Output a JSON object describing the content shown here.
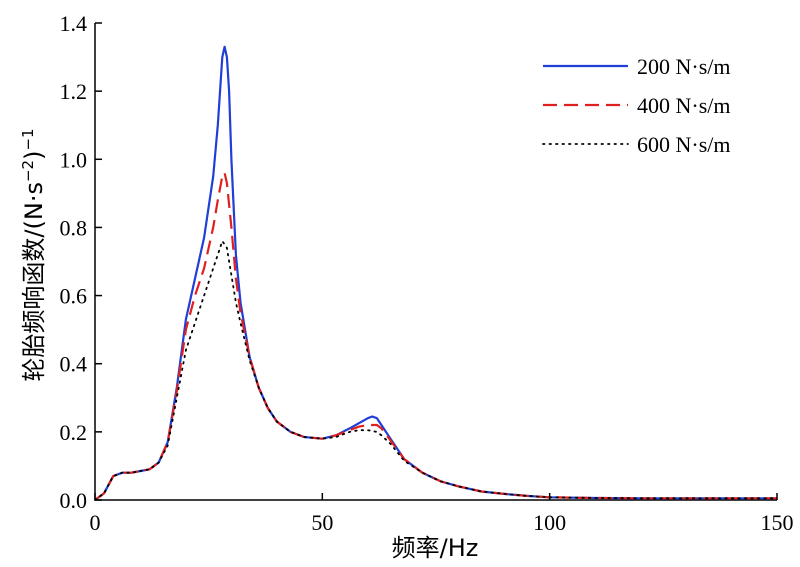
{
  "chart_data": {
    "type": "line",
    "title": "",
    "xlabel": "频率/Hz",
    "ylabel": {
      "main": "轮胎频响函数/(N·s",
      "inner_exp": "−2",
      "close": ")",
      "outer_exp": "−1"
    },
    "xlim": [
      0,
      150
    ],
    "ylim": [
      0,
      1.4
    ],
    "x_ticks": [
      "0",
      "50",
      "100",
      "150"
    ],
    "y_ticks": [
      "0.0",
      "0.2",
      "0.4",
      "0.6",
      "0.8",
      "1.0",
      "1.2",
      "1.4"
    ],
    "x_tick_values": [
      0,
      50,
      100,
      150
    ],
    "y_tick_values": [
      0,
      0.2,
      0.4,
      0.6,
      0.8,
      1.0,
      1.2,
      1.4
    ],
    "grid": false,
    "legend_position": "top-right",
    "series": [
      {
        "name": "200 N·s/m",
        "color": "#1f3fd6",
        "style": "solid",
        "x": [
          0,
          2,
          4,
          6,
          8,
          10,
          12,
          14,
          16,
          18,
          20,
          22,
          24,
          26,
          27,
          28,
          28.5,
          29,
          29.5,
          30,
          31,
          32,
          34,
          36,
          38,
          40,
          43,
          46,
          50,
          53,
          56,
          58,
          60,
          61,
          62,
          63,
          65,
          68,
          72,
          76,
          80,
          85,
          90,
          95,
          100,
          110,
          120,
          130,
          140,
          150
        ],
        "y": [
          0.0,
          0.02,
          0.07,
          0.08,
          0.08,
          0.085,
          0.09,
          0.11,
          0.17,
          0.33,
          0.53,
          0.65,
          0.77,
          0.95,
          1.1,
          1.3,
          1.33,
          1.3,
          1.2,
          1.0,
          0.72,
          0.58,
          0.42,
          0.33,
          0.27,
          0.23,
          0.2,
          0.185,
          0.18,
          0.19,
          0.21,
          0.225,
          0.24,
          0.245,
          0.24,
          0.22,
          0.18,
          0.12,
          0.08,
          0.055,
          0.04,
          0.025,
          0.018,
          0.012,
          0.008,
          0.006,
          0.005,
          0.005,
          0.005,
          0.005
        ]
      },
      {
        "name": "400 N·s/m",
        "color": "#e02020",
        "style": "dashed",
        "x": [
          0,
          2,
          4,
          6,
          8,
          10,
          12,
          14,
          16,
          18,
          20,
          22,
          24,
          26,
          27,
          28,
          28.5,
          29,
          30,
          31,
          32,
          34,
          36,
          38,
          40,
          43,
          46,
          50,
          53,
          56,
          58,
          60,
          62,
          63,
          65,
          68,
          72,
          76,
          80,
          85,
          90,
          95,
          100,
          110,
          120,
          130,
          140,
          150
        ],
        "y": [
          0.0,
          0.02,
          0.07,
          0.08,
          0.08,
          0.085,
          0.09,
          0.11,
          0.17,
          0.32,
          0.5,
          0.6,
          0.68,
          0.8,
          0.88,
          0.95,
          0.96,
          0.93,
          0.8,
          0.65,
          0.55,
          0.42,
          0.33,
          0.27,
          0.23,
          0.2,
          0.185,
          0.18,
          0.19,
          0.205,
          0.215,
          0.22,
          0.22,
          0.21,
          0.175,
          0.12,
          0.08,
          0.055,
          0.04,
          0.025,
          0.018,
          0.012,
          0.008,
          0.006,
          0.005,
          0.005,
          0.005,
          0.005
        ]
      },
      {
        "name": "600 N·s/m",
        "color": "#000000",
        "style": "dotted",
        "x": [
          0,
          2,
          4,
          6,
          8,
          10,
          12,
          14,
          16,
          18,
          20,
          22,
          24,
          26,
          27,
          28,
          29,
          30,
          31,
          32,
          34,
          36,
          38,
          40,
          43,
          46,
          50,
          53,
          56,
          58,
          60,
          62,
          63,
          65,
          68,
          72,
          76,
          80,
          85,
          90,
          95,
          100,
          110,
          120,
          130,
          140,
          150
        ],
        "y": [
          0.0,
          0.02,
          0.07,
          0.08,
          0.08,
          0.085,
          0.09,
          0.11,
          0.16,
          0.3,
          0.44,
          0.52,
          0.6,
          0.68,
          0.72,
          0.76,
          0.74,
          0.66,
          0.58,
          0.52,
          0.41,
          0.33,
          0.27,
          0.23,
          0.2,
          0.185,
          0.18,
          0.185,
          0.2,
          0.205,
          0.205,
          0.2,
          0.19,
          0.165,
          0.115,
          0.08,
          0.055,
          0.04,
          0.025,
          0.018,
          0.012,
          0.008,
          0.006,
          0.005,
          0.005,
          0.005,
          0.005
        ]
      }
    ]
  }
}
